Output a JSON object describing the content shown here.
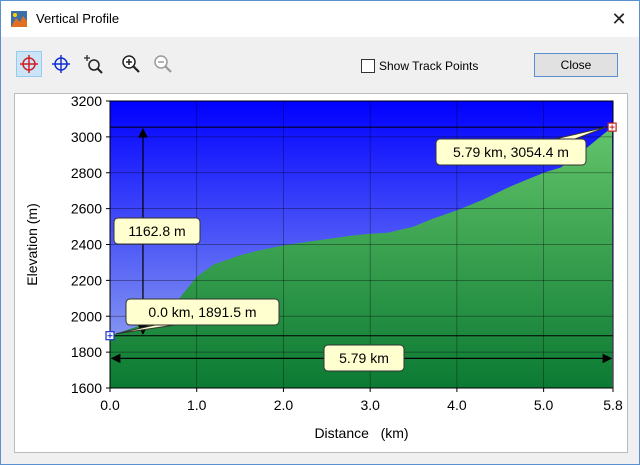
{
  "window": {
    "title": "Vertical Profile",
    "close_glyph": "✕"
  },
  "toolbar": {
    "icons": [
      "crosshair-red-icon",
      "crosshair-blue-icon",
      "zoom-select-icon",
      "zoom-in-icon",
      "zoom-out-icon"
    ],
    "show_track_points_label": "Show Track Points",
    "show_track_points_checked": false,
    "close_label": "Close"
  },
  "chart_data": {
    "type": "area",
    "xlabel": "Distance   (km)",
    "ylabel": "Elevation (m)",
    "xlim": [
      0,
      5.8
    ],
    "ylim": [
      1600,
      3200
    ],
    "x_ticks": [
      "0.0",
      "1.0",
      "2.0",
      "3.0",
      "4.0",
      "5.0",
      "5.8"
    ],
    "y_ticks": [
      "1600",
      "1800",
      "2000",
      "2200",
      "2400",
      "2600",
      "2800",
      "3000",
      "3200"
    ],
    "x": [
      0.0,
      0.3,
      0.6,
      0.8,
      1.0,
      1.2,
      1.5,
      1.7,
      2.0,
      2.2,
      2.5,
      2.8,
      3.0,
      3.2,
      3.5,
      3.7,
      4.0,
      4.3,
      4.6,
      4.8,
      5.0,
      5.2,
      5.5,
      5.79
    ],
    "y": [
      1891.5,
      1940,
      2000,
      2100,
      2220,
      2290,
      2340,
      2365,
      2395,
      2410,
      2430,
      2450,
      2460,
      2465,
      2500,
      2540,
      2590,
      2650,
      2720,
      2760,
      2800,
      2830,
      2940,
      3054.4
    ],
    "colors": {
      "sky_top": "#0000ff",
      "sky_bottom": "#9fb4ee",
      "ground_top": "#63c46a",
      "ground_bottom": "#0c7a33"
    },
    "annotations": {
      "start_label": "0.0 km, 1891.5 m",
      "end_label": "5.79 km, 3054.4 m",
      "elevation_gain_label": "1162.8 m",
      "distance_label": "5.79 km"
    }
  }
}
